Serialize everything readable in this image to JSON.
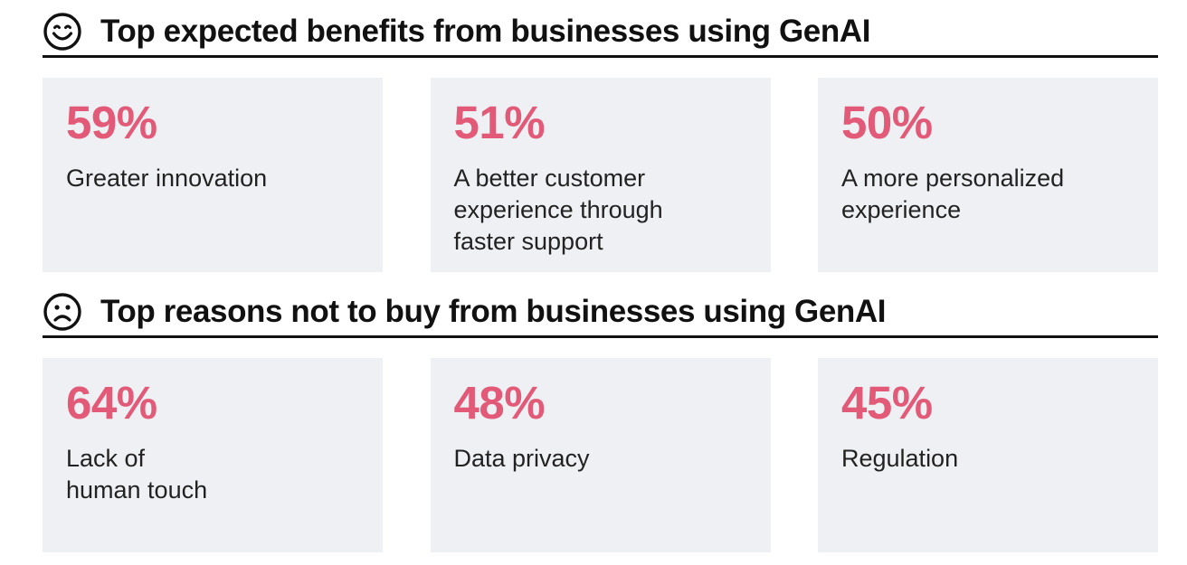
{
  "benefits": {
    "icon": "smiling-face-icon",
    "title": "Top expected benefits from businesses using GenAI",
    "items": [
      {
        "value": "59%",
        "label": "Greater innovation"
      },
      {
        "value": "51%",
        "label": "A better customer\nexperience through\nfaster support"
      },
      {
        "value": "50%",
        "label": "A more personalized\nexperience"
      }
    ]
  },
  "reasons": {
    "icon": "frowning-face-icon",
    "title": "Top reasons not to buy from businesses using GenAI",
    "items": [
      {
        "value": "64%",
        "label": "Lack of\nhuman touch"
      },
      {
        "value": "48%",
        "label": "Data privacy"
      },
      {
        "value": "45%",
        "label": "Regulation"
      }
    ]
  },
  "colors": {
    "accent": "#e35a78",
    "card_background": "#eef0f3",
    "heading_text": "#111111"
  }
}
